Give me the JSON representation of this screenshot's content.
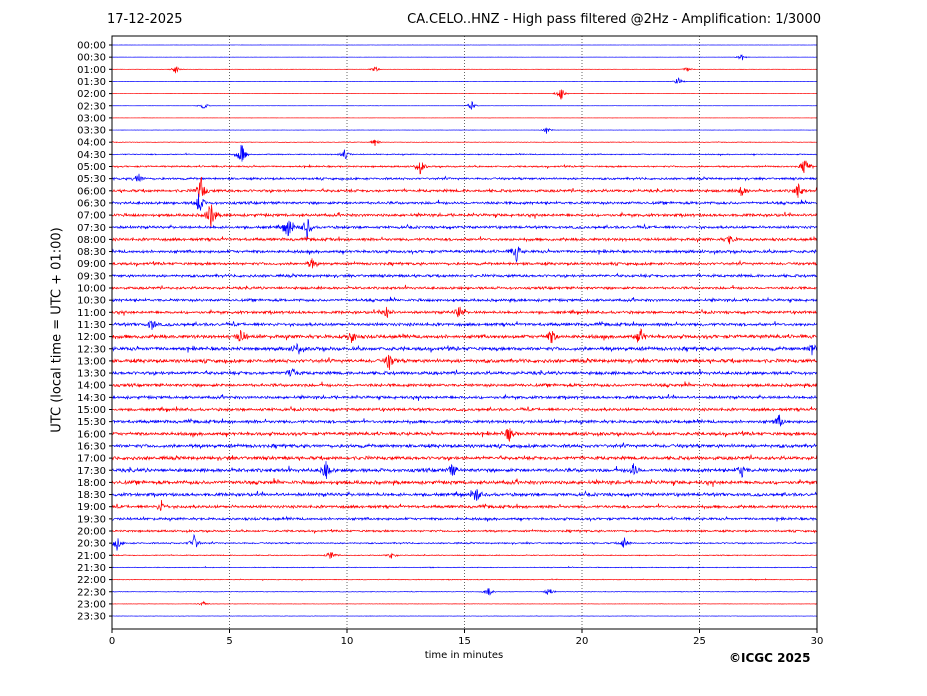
{
  "header": {
    "date": "17-12-2025",
    "title": "CA.CELO..HNZ - High pass filtered @2Hz - Amplification: 1/3000"
  },
  "footer": {
    "copyright": "©ICGC 2025"
  },
  "chart_data": {
    "type": "line",
    "title": "CA.CELO..HNZ - High pass filtered @2Hz - Amplification: 1/3000",
    "xlabel": "time in minutes",
    "ylabel": "UTC (local time = UTC + 01:00)",
    "xlim": [
      0,
      30
    ],
    "x_ticks": [
      0,
      5,
      10,
      15,
      20,
      25,
      30
    ],
    "grid": "vertical dotted lines at 5-minute intervals",
    "colors": {
      "blue": "#0000ff",
      "red": "#ff0000"
    },
    "row_labels": [
      "00:00",
      "00:30",
      "01:00",
      "01:30",
      "02:00",
      "02:30",
      "03:00",
      "03:30",
      "04:00",
      "04:30",
      "05:00",
      "05:30",
      "06:00",
      "06:30",
      "07:00",
      "07:30",
      "08:00",
      "08:30",
      "09:00",
      "09:30",
      "10:00",
      "10:30",
      "11:00",
      "11:30",
      "12:00",
      "12:30",
      "13:00",
      "13:30",
      "14:00",
      "14:30",
      "15:00",
      "15:30",
      "16:00",
      "16:30",
      "17:00",
      "17:30",
      "18:00",
      "18:30",
      "19:00",
      "19:30",
      "20:00",
      "20:30",
      "21:00",
      "21:30",
      "22:00",
      "22:30",
      "23:00",
      "23:30"
    ],
    "row_colors": [
      "blue",
      "blue",
      "red",
      "blue",
      "red",
      "blue",
      "red",
      "blue",
      "red",
      "blue",
      "red",
      "blue",
      "red",
      "blue",
      "red",
      "blue",
      "red",
      "blue",
      "red",
      "blue",
      "red",
      "blue",
      "red",
      "blue",
      "red",
      "blue",
      "red",
      "blue",
      "red",
      "blue",
      "red",
      "blue",
      "red",
      "blue",
      "red",
      "blue",
      "red",
      "blue",
      "red",
      "blue",
      "red",
      "blue",
      "red",
      "blue",
      "red",
      "blue",
      "red",
      "blue"
    ],
    "noise_level": [
      0.1,
      0.1,
      0.1,
      0.1,
      0.1,
      0.1,
      0.1,
      0.1,
      0.3,
      0.6,
      0.9,
      1.2,
      1.5,
      1.5,
      1.6,
      1.5,
      1.6,
      1.6,
      1.5,
      1.5,
      1.4,
      1.5,
      1.5,
      1.7,
      2,
      2,
      2,
      1.8,
      1.7,
      1.6,
      1.6,
      1.7,
      1.8,
      1.9,
      1.9,
      2,
      2,
      1.8,
      1.6,
      1.4,
      1.1,
      0.8,
      0.5,
      0.4,
      0.4,
      0.3,
      0.2,
      0.2
    ],
    "events": [
      {
        "row": "00:30",
        "minute": 26.8,
        "amplitude": 4
      },
      {
        "row": "01:00",
        "minute": 2.7,
        "amplitude": 5
      },
      {
        "row": "01:00",
        "minute": 11.2,
        "amplitude": 3
      },
      {
        "row": "01:00",
        "minute": 24.5,
        "amplitude": 3
      },
      {
        "row": "01:30",
        "minute": 24.1,
        "amplitude": 5
      },
      {
        "row": "02:00",
        "minute": 19.1,
        "amplitude": 8
      },
      {
        "row": "02:30",
        "minute": 3.9,
        "amplitude": 4
      },
      {
        "row": "02:30",
        "minute": 15.3,
        "amplitude": 5
      },
      {
        "row": "03:30",
        "minute": 18.5,
        "amplitude": 4
      },
      {
        "row": "04:00",
        "minute": 11.2,
        "amplitude": 4
      },
      {
        "row": "04:30",
        "minute": 5.5,
        "amplitude": 14
      },
      {
        "row": "04:30",
        "minute": 9.9,
        "amplitude": 6
      },
      {
        "row": "05:00",
        "minute": 13.1,
        "amplitude": 9
      },
      {
        "row": "05:00",
        "minute": 29.5,
        "amplitude": 10
      },
      {
        "row": "05:30",
        "minute": 1.1,
        "amplitude": 7
      },
      {
        "row": "06:00",
        "minute": 3.8,
        "amplitude": 14
      },
      {
        "row": "06:00",
        "minute": 26.8,
        "amplitude": 6
      },
      {
        "row": "06:00",
        "minute": 29.2,
        "amplitude": 8
      },
      {
        "row": "06:30",
        "minute": 3.7,
        "amplitude": 12
      },
      {
        "row": "07:00",
        "minute": 4.2,
        "amplitude": 16
      },
      {
        "row": "07:30",
        "minute": 7.5,
        "amplitude": 14
      },
      {
        "row": "07:30",
        "minute": 8.3,
        "amplitude": 12
      },
      {
        "row": "08:00",
        "minute": 26.3,
        "amplitude": 5
      },
      {
        "row": "08:30",
        "minute": 17.2,
        "amplitude": 10
      },
      {
        "row": "09:00",
        "minute": 8.5,
        "amplitude": 6
      },
      {
        "row": "11:00",
        "minute": 11.7,
        "amplitude": 7
      },
      {
        "row": "11:00",
        "minute": 14.8,
        "amplitude": 8
      },
      {
        "row": "11:30",
        "minute": 1.7,
        "amplitude": 6
      },
      {
        "row": "12:00",
        "minute": 5.5,
        "amplitude": 9
      },
      {
        "row": "12:00",
        "minute": 10.2,
        "amplitude": 8
      },
      {
        "row": "12:00",
        "minute": 18.7,
        "amplitude": 8
      },
      {
        "row": "12:00",
        "minute": 22.5,
        "amplitude": 9
      },
      {
        "row": "12:30",
        "minute": 7.9,
        "amplitude": 7
      },
      {
        "row": "12:30",
        "minute": 29.8,
        "amplitude": 7
      },
      {
        "row": "13:00",
        "minute": 11.8,
        "amplitude": 9
      },
      {
        "row": "13:30",
        "minute": 7.7,
        "amplitude": 7
      },
      {
        "row": "15:30",
        "minute": 28.4,
        "amplitude": 7
      },
      {
        "row": "16:00",
        "minute": 16.9,
        "amplitude": 8
      },
      {
        "row": "17:30",
        "minute": 9.1,
        "amplitude": 10
      },
      {
        "row": "17:30",
        "minute": 14.5,
        "amplitude": 7
      },
      {
        "row": "17:30",
        "minute": 22.2,
        "amplitude": 7
      },
      {
        "row": "17:30",
        "minute": 26.8,
        "amplitude": 7
      },
      {
        "row": "18:30",
        "minute": 15.5,
        "amplitude": 8
      },
      {
        "row": "19:00",
        "minute": 2.1,
        "amplitude": 6
      },
      {
        "row": "20:30",
        "minute": 0.2,
        "amplitude": 8
      },
      {
        "row": "20:30",
        "minute": 3.5,
        "amplitude": 9
      },
      {
        "row": "20:30",
        "minute": 21.8,
        "amplitude": 6
      },
      {
        "row": "21:00",
        "minute": 9.3,
        "amplitude": 5
      },
      {
        "row": "21:00",
        "minute": 11.9,
        "amplitude": 4
      },
      {
        "row": "22:30",
        "minute": 16.0,
        "amplitude": 6
      },
      {
        "row": "22:30",
        "minute": 18.6,
        "amplitude": 5
      },
      {
        "row": "23:00",
        "minute": 3.9,
        "amplitude": 3
      }
    ]
  }
}
